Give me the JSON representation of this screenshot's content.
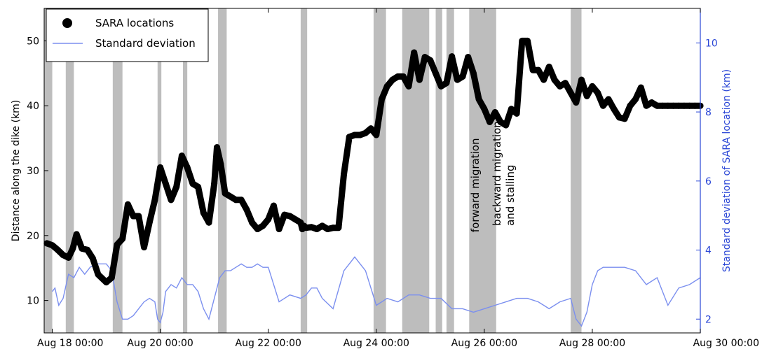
{
  "chart_data": {
    "type": "line",
    "x_axis": {
      "ticks": [
        0,
        2,
        4,
        6,
        8,
        10,
        12
      ],
      "tick_labels": [
        "Aug 18 00:00",
        "Aug 20 00:00",
        "Aug 22 00:00",
        "Aug 24 00:00",
        "Aug 26 00:00",
        "Aug 28 00:00",
        "Aug 30 00:00"
      ],
      "range": [
        -0.15,
        12
      ]
    },
    "y_left": {
      "label": "Distance along the dike (km)",
      "ticks": [
        10,
        20,
        30,
        40,
        50
      ],
      "range": [
        5,
        55
      ]
    },
    "y_right": {
      "label": "Standard deviation of SARA location (km)",
      "ticks": [
        2,
        4,
        6,
        8,
        10
      ],
      "range": [
        1.6,
        11.0
      ],
      "color": "#2a46d6"
    },
    "legend": {
      "position": "top-left",
      "entries": [
        {
          "label": "SARA locations",
          "marker": "circle",
          "color": "#000000"
        },
        {
          "label": "Standard deviation",
          "marker": "line",
          "color": "#7b8fef"
        }
      ]
    },
    "shaded_intervals": {
      "color": "#bdbdbd",
      "intervals": [
        [
          -0.15,
          0.0
        ],
        [
          0.25,
          0.4
        ],
        [
          1.12,
          1.3
        ],
        [
          1.95,
          2.02
        ],
        [
          2.42,
          2.5
        ],
        [
          3.07,
          3.23
        ],
        [
          4.6,
          4.72
        ],
        [
          5.95,
          6.18
        ],
        [
          6.48,
          6.98
        ],
        [
          7.1,
          7.22
        ],
        [
          7.3,
          7.44
        ],
        [
          7.72,
          8.22
        ],
        [
          9.6,
          9.8
        ]
      ]
    },
    "annotations": [
      {
        "text": "forward migration",
        "x": 7.9,
        "y": 20.5,
        "rotation": -90
      },
      {
        "text": "backward migration",
        "x": 8.3,
        "y": 21.5,
        "rotation": -90
      },
      {
        "text": "and stalling",
        "x": 8.55,
        "y": 21.5,
        "rotation": -90
      }
    ],
    "series": [
      {
        "name": "SARA locations",
        "axis": "left",
        "color": "#000000",
        "x": [
          -0.1,
          0.0,
          0.1,
          0.2,
          0.3,
          0.38,
          0.45,
          0.55,
          0.65,
          0.75,
          0.85,
          1.0,
          1.1,
          1.2,
          1.3,
          1.4,
          1.5,
          1.6,
          1.7,
          1.8,
          1.9,
          2.0,
          2.1,
          2.2,
          2.3,
          2.4,
          2.5,
          2.6,
          2.7,
          2.8,
          2.9,
          3.0,
          3.05,
          3.12,
          3.2,
          3.3,
          3.4,
          3.5,
          3.6,
          3.7,
          3.8,
          3.9,
          4.0,
          4.1,
          4.2,
          4.3,
          4.4,
          4.5,
          4.6,
          4.63,
          4.66,
          4.7,
          4.8,
          4.9,
          5.0,
          5.1,
          5.2,
          5.3,
          5.4,
          5.5,
          5.6,
          5.7,
          5.8,
          5.9,
          6.0,
          6.1,
          6.2,
          6.3,
          6.4,
          6.5,
          6.6,
          6.7,
          6.8,
          6.9,
          7.0,
          7.1,
          7.2,
          7.3,
          7.4,
          7.5,
          7.6,
          7.7,
          7.8,
          7.9,
          8.0,
          8.1,
          8.2,
          8.3,
          8.4,
          8.5,
          8.6,
          8.7,
          8.8,
          8.9,
          9.0,
          9.1,
          9.2,
          9.3,
          9.4,
          9.5,
          9.6,
          9.7,
          9.8,
          9.9,
          10.0,
          10.1,
          10.2,
          10.3,
          10.4,
          10.5,
          10.6,
          10.7,
          10.8,
          10.9,
          11.0,
          11.1,
          11.2,
          11.3,
          11.4,
          11.5,
          11.6,
          11.7,
          11.8,
          11.9,
          12.0
        ],
        "values": [
          18.8,
          18.5,
          17.8,
          17.0,
          16.6,
          18.0,
          20.2,
          18.0,
          17.8,
          16.5,
          14.0,
          12.8,
          13.5,
          18.6,
          19.5,
          24.8,
          23.0,
          23.0,
          18.2,
          22.0,
          25.5,
          30.5,
          28.0,
          25.5,
          27.5,
          32.3,
          30.5,
          28.0,
          27.5,
          23.5,
          22.0,
          28.0,
          33.6,
          31.0,
          26.5,
          26.0,
          25.5,
          25.5,
          24.0,
          22.0,
          21.0,
          21.5,
          22.5,
          24.6,
          21.0,
          23.2,
          23.0,
          22.5,
          22.0,
          21.0,
          21.5,
          21.2,
          21.3,
          21.0,
          21.5,
          21.0,
          21.2,
          21.2,
          29.5,
          35.2,
          35.5,
          35.5,
          35.8,
          36.5,
          35.5,
          41.0,
          43.0,
          44.0,
          44.5,
          44.5,
          43.0,
          48.2,
          44.0,
          47.5,
          47.0,
          45.0,
          43.0,
          43.5,
          47.6,
          44.0,
          44.5,
          47.5,
          45.0,
          41.0,
          39.5,
          37.5,
          39.0,
          37.5,
          37.0,
          39.5,
          38.8,
          50.0,
          50.0,
          45.5,
          45.5,
          44.0,
          46.0,
          44.0,
          43.0,
          43.5,
          42.0,
          40.5,
          44.0,
          41.5,
          43.0,
          42.0,
          40.0,
          41.0,
          39.5,
          38.2,
          38.0,
          40.0,
          41.0,
          42.8,
          40.0,
          40.5,
          40.0,
          40.0,
          40.0,
          40.0,
          40.0,
          40.0,
          40.0,
          40.0,
          40.0
        ]
      },
      {
        "name": "Standard deviation",
        "axis": "right",
        "color": "#7b8fef",
        "x": [
          0.0,
          0.05,
          0.12,
          0.2,
          0.3,
          0.4,
          0.5,
          0.6,
          0.7,
          0.8,
          0.9,
          1.0,
          1.1,
          1.2,
          1.3,
          1.4,
          1.5,
          1.6,
          1.7,
          1.8,
          1.9,
          1.95,
          2.0,
          2.05,
          2.1,
          2.2,
          2.3,
          2.4,
          2.5,
          2.6,
          2.7,
          2.8,
          2.9,
          3.0,
          3.1,
          3.2,
          3.3,
          3.4,
          3.5,
          3.6,
          3.7,
          3.8,
          3.9,
          4.0,
          4.2,
          4.4,
          4.6,
          4.7,
          4.8,
          4.9,
          5.0,
          5.2,
          5.4,
          5.6,
          5.8,
          6.0,
          6.1,
          6.2,
          6.4,
          6.6,
          6.8,
          7.0,
          7.2,
          7.4,
          7.6,
          7.8,
          8.0,
          8.2,
          8.4,
          8.6,
          8.8,
          9.0,
          9.2,
          9.4,
          9.6,
          9.7,
          9.8,
          9.9,
          10.0,
          10.1,
          10.2,
          10.4,
          10.6,
          10.8,
          11.0,
          11.2,
          11.4,
          11.6,
          11.8,
          12.0
        ],
        "values": [
          2.8,
          2.9,
          2.4,
          2.6,
          3.3,
          3.2,
          3.5,
          3.3,
          3.5,
          3.6,
          3.6,
          3.6,
          3.4,
          2.5,
          2.0,
          2.0,
          2.1,
          2.3,
          2.5,
          2.6,
          2.5,
          2.0,
          1.9,
          2.2,
          2.8,
          3.0,
          2.9,
          3.2,
          3.0,
          3.0,
          2.8,
          2.3,
          2.0,
          2.6,
          3.2,
          3.4,
          3.4,
          3.5,
          3.6,
          3.5,
          3.5,
          3.6,
          3.5,
          3.5,
          2.5,
          2.7,
          2.6,
          2.7,
          2.9,
          2.9,
          2.6,
          2.3,
          3.4,
          3.8,
          3.4,
          2.4,
          2.5,
          2.6,
          2.5,
          2.7,
          2.7,
          2.6,
          2.6,
          2.3,
          2.3,
          2.2,
          2.3,
          2.4,
          2.5,
          2.6,
          2.6,
          2.5,
          2.3,
          2.5,
          2.6,
          2.0,
          1.8,
          2.2,
          3.0,
          3.4,
          3.5,
          3.5,
          3.5,
          3.4,
          3.0,
          3.2,
          2.4,
          2.9,
          3.0,
          3.2
        ]
      }
    ]
  }
}
